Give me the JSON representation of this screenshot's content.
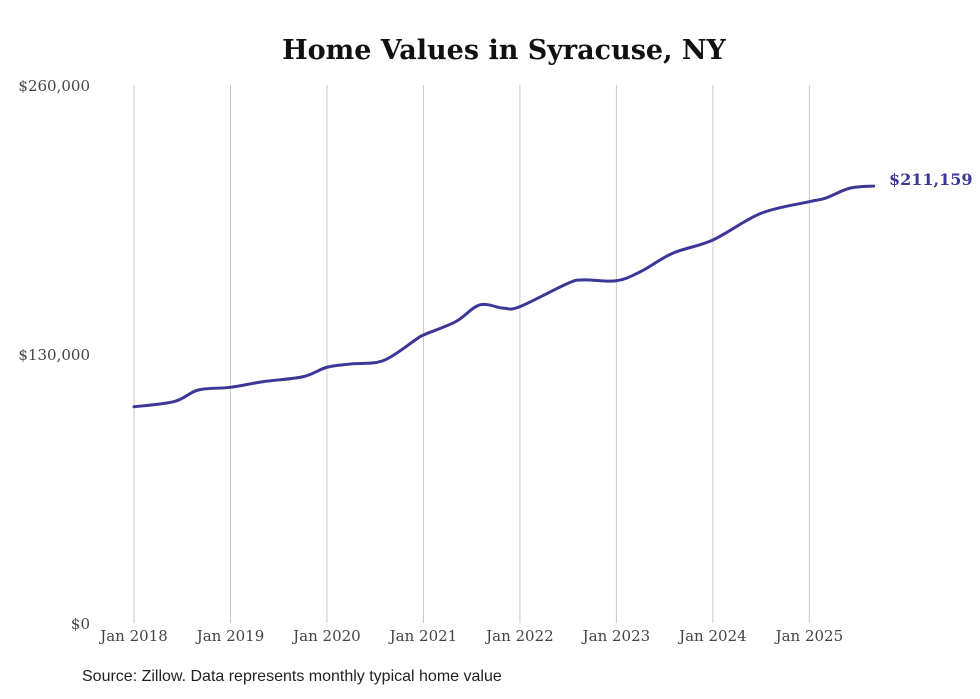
{
  "chart_data": {
    "type": "line",
    "title": "Home Values in Syracuse, NY",
    "xlabel": "",
    "ylabel": "",
    "ylim": [
      0,
      260000
    ],
    "y_ticks": [
      0,
      130000,
      260000
    ],
    "y_tick_labels": [
      "$0",
      "$130,000",
      "$260,000"
    ],
    "x_tick_labels": [
      "Jan 2018",
      "Jan 2019",
      "Jan 2020",
      "Jan 2021",
      "Jan 2022",
      "Jan 2023",
      "Jan 2024",
      "Jan 2025"
    ],
    "x_tick_dates": [
      "2018-01",
      "2019-01",
      "2020-01",
      "2021-01",
      "2022-01",
      "2023-01",
      "2024-01",
      "2025-01"
    ],
    "grid": "vertical",
    "series": [
      {
        "name": "Typical home value",
        "color": "#3b3796",
        "points": [
          {
            "date": "2018-01",
            "value": 104500
          },
          {
            "date": "2018-06",
            "value": 107000
          },
          {
            "date": "2018-09",
            "value": 112600
          },
          {
            "date": "2019-01",
            "value": 113900
          },
          {
            "date": "2019-05",
            "value": 116600
          },
          {
            "date": "2019-10",
            "value": 119000
          },
          {
            "date": "2020-01",
            "value": 123600
          },
          {
            "date": "2020-04",
            "value": 125200
          },
          {
            "date": "2020-08",
            "value": 126800
          },
          {
            "date": "2020-12",
            "value": 136800
          },
          {
            "date": "2021-01",
            "value": 139200
          },
          {
            "date": "2021-05",
            "value": 145600
          },
          {
            "date": "2021-08",
            "value": 153700
          },
          {
            "date": "2021-11",
            "value": 152100
          },
          {
            "date": "2022-01",
            "value": 152900
          },
          {
            "date": "2022-07",
            "value": 164200
          },
          {
            "date": "2022-09",
            "value": 165800
          },
          {
            "date": "2023-01",
            "value": 165400
          },
          {
            "date": "2023-04",
            "value": 169800
          },
          {
            "date": "2023-08",
            "value": 178700
          },
          {
            "date": "2024-01",
            "value": 185100
          },
          {
            "date": "2024-07",
            "value": 198000
          },
          {
            "date": "2025-01",
            "value": 203600
          },
          {
            "date": "2025-03",
            "value": 205300
          },
          {
            "date": "2025-06",
            "value": 210100
          },
          {
            "date": "2025-09",
            "value": 211159
          }
        ]
      }
    ],
    "end_label": "$211,159"
  },
  "source": "Source: Zillow. Data represents monthly typical home value"
}
